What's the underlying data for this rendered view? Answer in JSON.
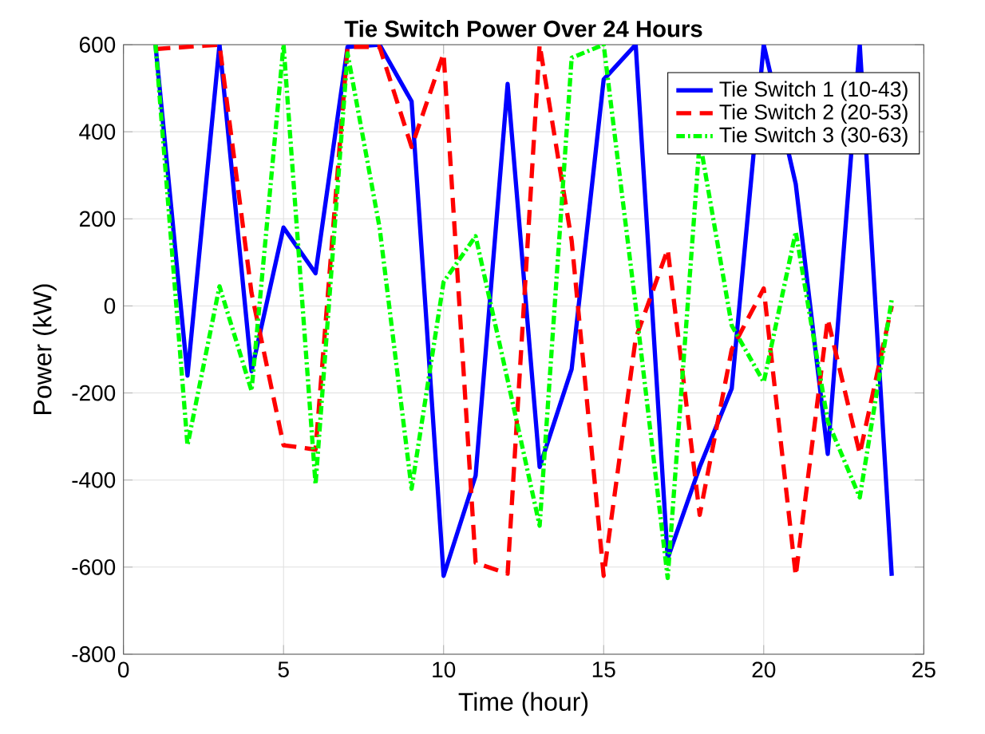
{
  "chart_data": {
    "type": "line",
    "title": "Tie Switch Power Over 24 Hours",
    "xlabel": "Time (hour)",
    "ylabel": "Power (kW)",
    "x": [
      1,
      2,
      3,
      4,
      5,
      6,
      7,
      8,
      9,
      10,
      11,
      12,
      13,
      14,
      15,
      16,
      17,
      18,
      19,
      20,
      21,
      22,
      23,
      24
    ],
    "series": [
      {
        "name": "Tie Switch 1 (10-43)",
        "color": "#0000ff",
        "line_style": "solid",
        "values": [
          600,
          -160,
          600,
          -150,
          180,
          75,
          595,
          600,
          470,
          -620,
          -390,
          510,
          -370,
          -145,
          520,
          600,
          -580,
          -370,
          -190,
          600,
          280,
          -340,
          600,
          -620
        ]
      },
      {
        "name": "Tie Switch 2 (20-53)",
        "color": "#ff0000",
        "line_style": "dashed",
        "values": [
          590,
          595,
          600,
          30,
          -320,
          -330,
          595,
          595,
          365,
          580,
          -590,
          -615,
          600,
          150,
          -620,
          -75,
          130,
          -480,
          -100,
          40,
          -620,
          -30,
          -340,
          0
        ]
      },
      {
        "name": "Tie Switch 3 (30-63)",
        "color": "#00ff00",
        "line_style": "dotted",
        "values": [
          600,
          -320,
          45,
          -195,
          600,
          -410,
          580,
          180,
          -420,
          55,
          160,
          -170,
          -505,
          570,
          600,
          0,
          -625,
          380,
          -45,
          -175,
          170,
          -265,
          -440,
          15
        ]
      }
    ],
    "xlim": [
      0,
      25
    ],
    "ylim": [
      -800,
      600
    ],
    "xticks": [
      0,
      5,
      10,
      15,
      20,
      25
    ],
    "yticks": [
      -800,
      -600,
      -400,
      -200,
      0,
      200,
      400,
      600
    ],
    "grid": true,
    "legend": "top right"
  }
}
